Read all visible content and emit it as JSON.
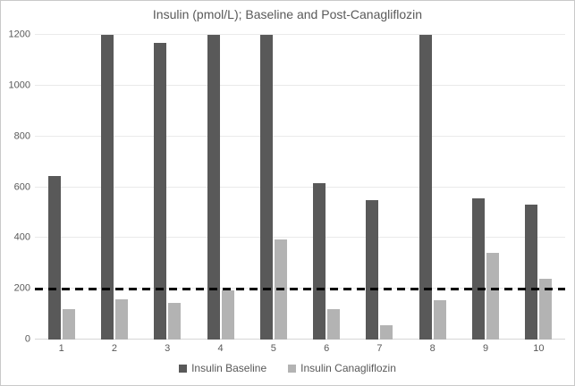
{
  "chart_data": {
    "type": "bar",
    "title": "Insulin (pmol/L); Baseline and Post-Canagliflozin",
    "categories": [
      "1",
      "2",
      "3",
      "4",
      "5",
      "6",
      "7",
      "8",
      "9",
      "10"
    ],
    "series": [
      {
        "name": "Insulin Baseline",
        "color": "#595959",
        "values": [
          645,
          1200,
          1170,
          1200,
          1200,
          615,
          550,
          1200,
          555,
          530
        ]
      },
      {
        "name": "Insulin Canagliflozin",
        "color": "#b3b3b3",
        "values": [
          120,
          160,
          145,
          195,
          395,
          120,
          55,
          155,
          340,
          240
        ]
      }
    ],
    "ylabel": "",
    "xlabel": "",
    "ylim": [
      0,
      1200
    ],
    "ytick_step": 200,
    "yticks": [
      0,
      200,
      400,
      600,
      800,
      1000,
      1200
    ],
    "grid": true,
    "legend_position": "bottom",
    "reference_line": {
      "value": 200,
      "style": "dashed",
      "color": "#000000"
    }
  }
}
